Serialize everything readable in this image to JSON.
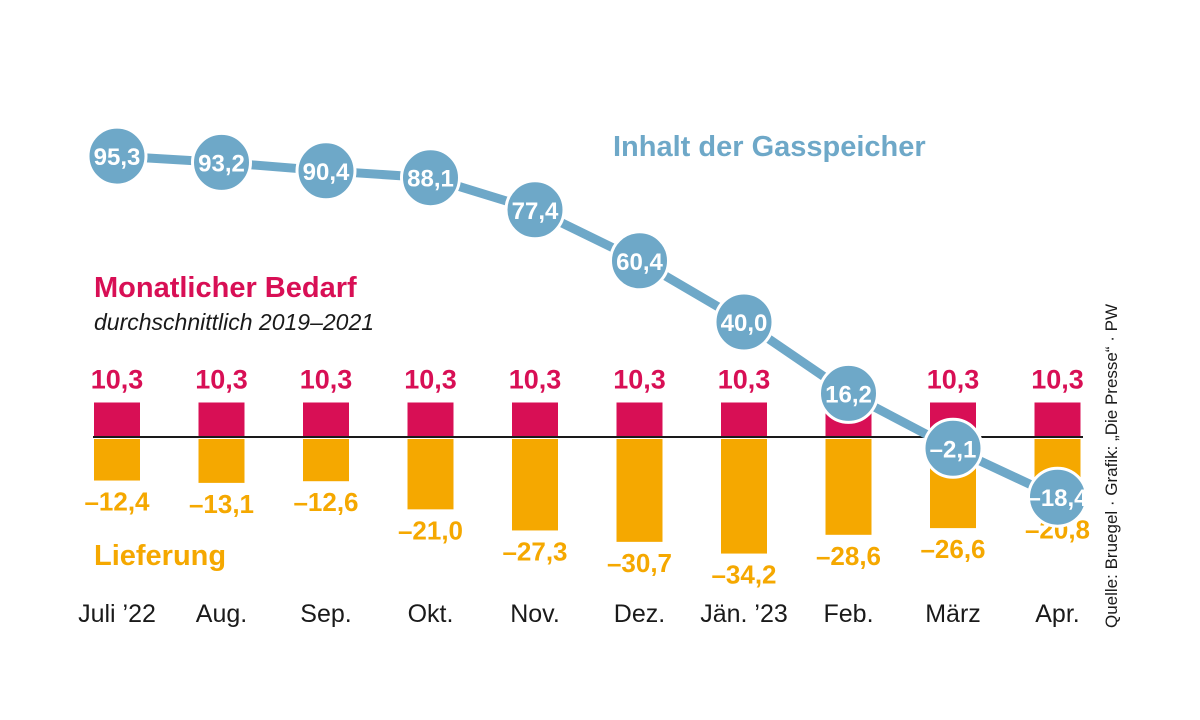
{
  "colors": {
    "bedarf": "#d80f55",
    "lieferung": "#f5a800",
    "storage": "#6ea8c8",
    "axis": "#1a1a1a",
    "text": "#1a1a1a"
  },
  "labels": {
    "storage_title": "Inhalt der Gasspeicher",
    "bedarf_title": "Monatlicher Bedarf",
    "bedarf_subtitle": "durchschnittlich 2019–2021",
    "lieferung_title": "Lieferung",
    "source": "Quelle: Bruegel · Grafik: „Die Presse“ · PW"
  },
  "chart_data": {
    "type": "bar",
    "categories": [
      "Juli ’22",
      "Aug.",
      "Sep.",
      "Okt.",
      "Nov.",
      "Dez.",
      "Jän. ’23",
      "Feb.",
      "März",
      "Apr."
    ],
    "series": [
      {
        "name": "Monatlicher Bedarf",
        "values": [
          10.3,
          10.3,
          10.3,
          10.3,
          10.3,
          10.3,
          10.3,
          10.3,
          10.3,
          10.3
        ],
        "labels": [
          "10,3",
          "10,3",
          "10,3",
          "10,3",
          "10,3",
          "10,3",
          "10,3",
          "",
          "10,3",
          "10,3"
        ]
      },
      {
        "name": "Lieferung",
        "values": [
          -12.4,
          -13.1,
          -12.6,
          -21.0,
          -27.3,
          -30.7,
          -34.2,
          -28.6,
          -26.6,
          -20.8
        ],
        "labels": [
          "–12,4",
          "–13,1",
          "–12,6",
          "–21,0",
          "–27,3",
          "–30,7",
          "–34,2",
          "–28,6",
          "–26,6",
          "–20,8"
        ]
      },
      {
        "name": "Inhalt der Gasspeicher",
        "type": "line",
        "values": [
          95.3,
          93.2,
          90.4,
          88.1,
          77.4,
          60.4,
          40.0,
          16.2,
          -2.1,
          -18.4
        ],
        "labels": [
          "95,3",
          "93,2",
          "90,4",
          "88,1",
          "77,4",
          "60,4",
          "40,0",
          "16,2",
          "–2,1",
          "–18,4"
        ]
      }
    ],
    "grid": false,
    "legend": "none"
  }
}
